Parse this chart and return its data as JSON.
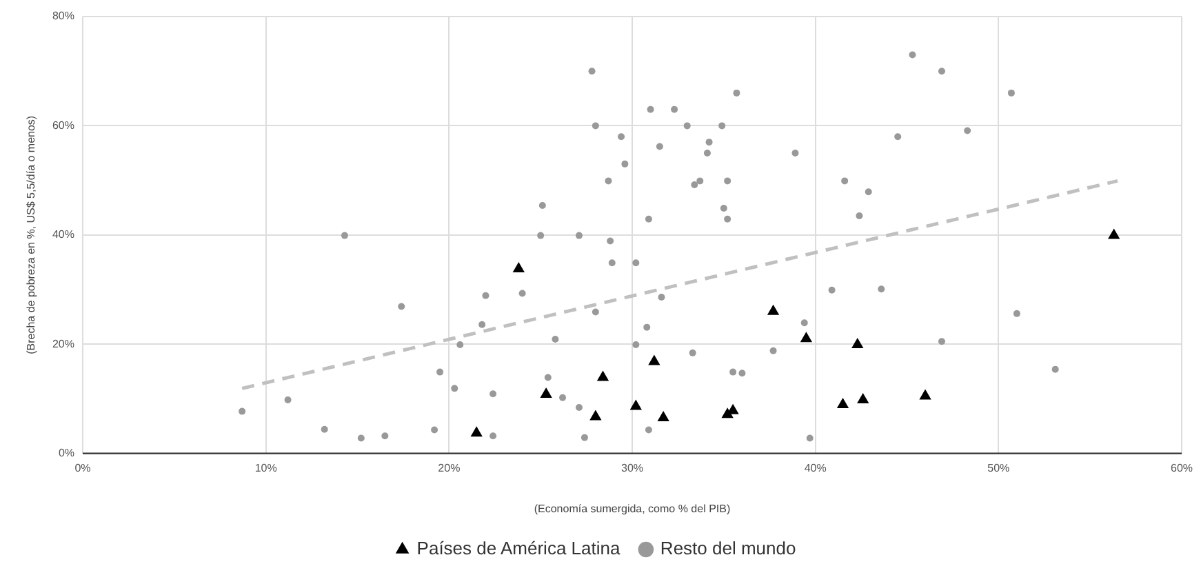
{
  "chart_data": {
    "type": "scatter",
    "xlabel": "(Economía sumergida, como % del PIB)",
    "ylabel": "(Brecha de pobreza en %, US$ 5,5/día o menos)",
    "xlim": [
      0,
      60
    ],
    "ylim": [
      0,
      80
    ],
    "xticks": [
      {
        "value": 0,
        "label": "0%"
      },
      {
        "value": 10,
        "label": "10%"
      },
      {
        "value": 20,
        "label": "20%"
      },
      {
        "value": 30,
        "label": "30%"
      },
      {
        "value": 40,
        "label": "40%"
      },
      {
        "value": 50,
        "label": "50%"
      },
      {
        "value": 60,
        "label": "60%"
      }
    ],
    "yticks": [
      {
        "value": 0,
        "label": "0%"
      },
      {
        "value": 20,
        "label": "20%"
      },
      {
        "value": 40,
        "label": "40%"
      },
      {
        "value": 60,
        "label": "60%"
      },
      {
        "value": 80,
        "label": "80%"
      }
    ],
    "grid": true,
    "legend": "bottom",
    "series": [
      {
        "name": "Países de América Latina",
        "color": "#000000",
        "marker": "triangle",
        "x": [
          21.5,
          23.8,
          25.3,
          28.4,
          28.0,
          30.2,
          31.2,
          31.7,
          35.2,
          35.5,
          37.7,
          39.5,
          41.5,
          42.6,
          42.3,
          46.0,
          56.3
        ],
        "values": [
          3.7,
          33.8,
          10.8,
          13.9,
          6.7,
          8.6,
          16.8,
          6.5,
          7.1,
          7.8,
          26.0,
          21.0,
          8.9,
          9.8,
          19.9,
          10.5,
          39.9
        ]
      },
      {
        "name": "Resto del mundo",
        "color": "#999999",
        "marker": "circle",
        "x": [
          8.7,
          11.2,
          13.2,
          14.3,
          15.2,
          16.5,
          17.4,
          19.2,
          19.5,
          20.3,
          20.6,
          21.8,
          22.0,
          22.4,
          22.4,
          24.0,
          25.0,
          25.1,
          25.4,
          25.8,
          26.2,
          27.1,
          27.1,
          27.4,
          27.8,
          28.0,
          28.0,
          28.7,
          28.8,
          28.9,
          29.4,
          29.6,
          30.2,
          30.2,
          30.8,
          30.9,
          30.9,
          31.0,
          31.5,
          31.6,
          32.3,
          33.0,
          33.3,
          33.4,
          33.7,
          34.1,
          34.2,
          34.9,
          35.0,
          35.2,
          35.2,
          35.5,
          35.7,
          36.0,
          37.7,
          38.9,
          39.4,
          39.7,
          40.9,
          41.6,
          42.4,
          42.9,
          43.6,
          44.5,
          45.3,
          46.9,
          46.9,
          48.3,
          50.7,
          51.0,
          53.1
        ],
        "values": [
          7.7,
          9.8,
          4.4,
          39.9,
          2.8,
          3.2,
          26.9,
          4.3,
          14.9,
          11.9,
          19.9,
          23.6,
          28.9,
          3.2,
          10.9,
          29.3,
          39.9,
          45.4,
          13.9,
          20.9,
          10.2,
          8.4,
          39.9,
          2.9,
          70.0,
          60.0,
          25.9,
          49.9,
          38.9,
          34.9,
          58.0,
          53.0,
          34.9,
          19.9,
          23.1,
          42.9,
          4.3,
          63.0,
          56.2,
          28.6,
          63.0,
          60.0,
          18.4,
          49.2,
          49.9,
          55.0,
          57.0,
          60.0,
          44.9,
          49.9,
          42.9,
          14.9,
          66.0,
          14.7,
          18.8,
          55.0,
          23.9,
          2.8,
          29.9,
          49.9,
          43.5,
          47.9,
          30.1,
          58.0,
          73.0,
          20.5,
          70.0,
          59.1,
          66.0,
          25.6,
          15.4
        ]
      },
      {
        "type": "line",
        "color": "#c0c0c0",
        "marker": "none",
        "line_style": "dashed",
        "x": [
          8.7,
          56.5
        ],
        "values": [
          11.9,
          49.9
        ]
      }
    ]
  }
}
